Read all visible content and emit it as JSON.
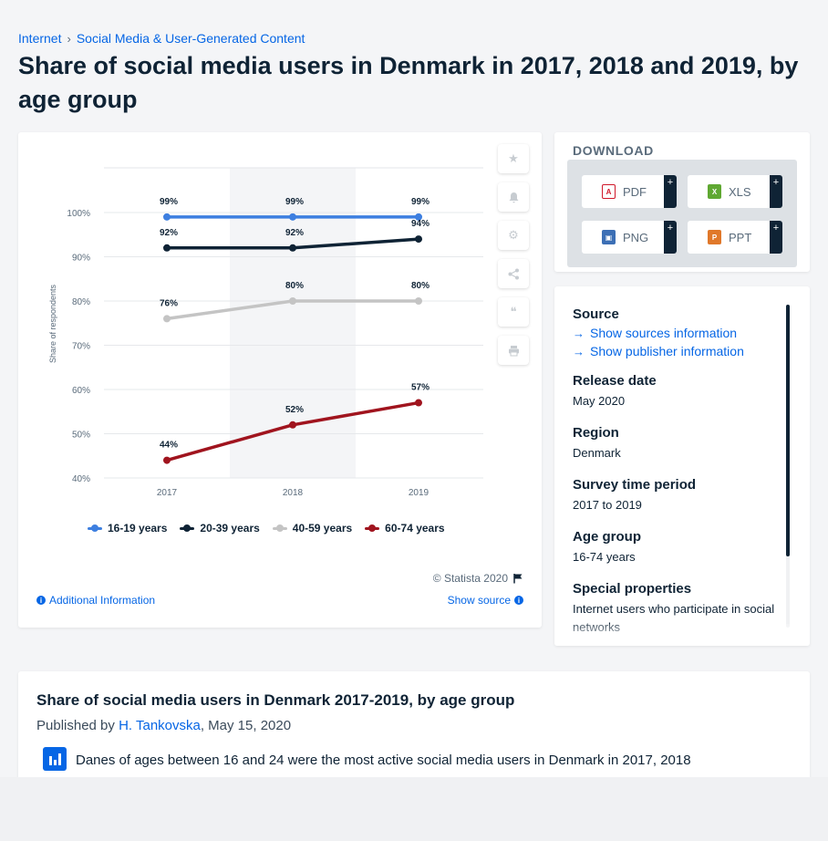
{
  "breadcrumb": {
    "items": [
      "Internet",
      "Social Media & User-Generated Content"
    ],
    "separator": "›"
  },
  "page_title": "Share of social media users in Denmark in 2017, 2018 and 2019, by age group",
  "chart_tools": [
    "star-icon",
    "bell-icon",
    "gear-icon",
    "share-icon",
    "quote-icon",
    "print-icon"
  ],
  "chart_data": {
    "type": "line",
    "title": "",
    "xlabel": "",
    "ylabel": "Share of respondents",
    "x": [
      "2017",
      "2018",
      "2019"
    ],
    "ylim": [
      40,
      100
    ],
    "yticks": [
      "40%",
      "50%",
      "60%",
      "70%",
      "80%",
      "90%",
      "100%"
    ],
    "grid": true,
    "legend_position": "bottom",
    "series": [
      {
        "name": "16-19 years",
        "color": "#3d7fe0",
        "values": [
          99,
          99,
          99
        ],
        "labels": [
          "99%",
          "99%",
          "99%"
        ]
      },
      {
        "name": "20-39 years",
        "color": "#0f2335",
        "values": [
          92,
          92,
          94
        ],
        "labels": [
          "92%",
          "92%",
          "94%"
        ]
      },
      {
        "name": "40-59 years",
        "color": "#c4c4c4",
        "values": [
          76,
          80,
          80
        ],
        "labels": [
          "76%",
          "80%",
          "80%"
        ]
      },
      {
        "name": "60-74 years",
        "color": "#a0141e",
        "values": [
          44,
          52,
          57
        ],
        "labels": [
          "44%",
          "52%",
          "57%"
        ]
      }
    ]
  },
  "chart_footer": {
    "copyright": "© Statista 2020",
    "additional_info": "Additional Information",
    "show_source": "Show source"
  },
  "download": {
    "title": "DOWNLOAD",
    "buttons": [
      {
        "label": "PDF",
        "icon": "pdf-file-icon",
        "color": "#d0182a"
      },
      {
        "label": "XLS",
        "icon": "xls-file-icon",
        "color": "#5fa832"
      },
      {
        "label": "PNG",
        "icon": "png-file-icon",
        "color": "#3c6fb5"
      },
      {
        "label": "PPT",
        "icon": "ppt-file-icon",
        "color": "#e0782a"
      }
    ],
    "plus": "+"
  },
  "source_panel": {
    "source_heading": "Source",
    "show_sources": "Show sources information",
    "show_publisher": "Show publisher information",
    "release_date_label": "Release date",
    "release_date": "May 2020",
    "region_label": "Region",
    "region": "Denmark",
    "survey_period_label": "Survey time period",
    "survey_period": "2017 to 2019",
    "age_group_label": "Age group",
    "age_group": "16-74 years",
    "special_label": "Special properties",
    "special": "Internet users who participate in social networks"
  },
  "statistic": {
    "title": "Share of social media users in Denmark 2017-2019, by age group",
    "published_prefix": "Published by",
    "author": "H. Tankovska",
    "date": ", May 15, 2020",
    "summary": "Danes of ages between 16 and 24 were the most active social media users in Denmark in 2017, 2018"
  }
}
